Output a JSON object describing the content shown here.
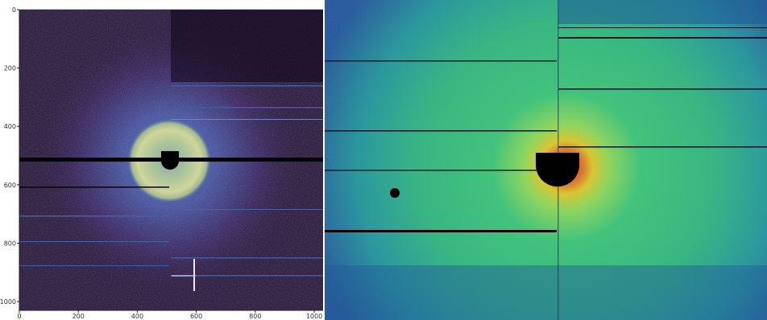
{
  "left_plot": {
    "x_ticks": [
      "0",
      "200",
      "400",
      "600",
      "800",
      "1000"
    ],
    "y_ticks": [
      "0",
      "200",
      "400",
      "600",
      "800",
      "1000"
    ],
    "x_tick_values": [
      0,
      200,
      400,
      600,
      800,
      1000
    ],
    "y_tick_values": [
      0,
      200,
      400,
      600,
      800,
      1000
    ],
    "xlim": [
      0,
      1030
    ],
    "ylim": [
      1030,
      0
    ],
    "colormap": "viridis",
    "colors": {
      "background": "#1b0b2a",
      "ring": "#c8d68a",
      "mid": "#3b4d9a",
      "beamstop": "#000000"
    }
  },
  "right_plot": {
    "colormap": "jet",
    "colors": {
      "background": "#1f4c8c",
      "field": "#2fc06a",
      "hot": "#ff3a10",
      "warm": "#ffd400",
      "beamstop": "#000000"
    }
  }
}
